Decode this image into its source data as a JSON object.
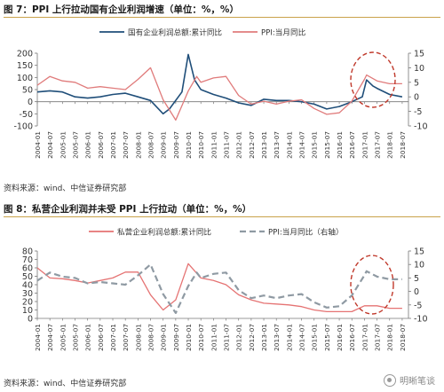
{
  "figures": [
    {
      "title": "图 7：PPI 上行拉动国有企业利润增速（单位：%，%）",
      "source": "资料来源：wind、中信证券研究部"
    },
    {
      "title": "图 8：私营企业利润并未受 PPI 上行拉动（单位：%，%）",
      "source": "资料来源：wind、中信证券研究部"
    }
  ],
  "watermark": {
    "text": "明晰笔谈",
    "icon": "wechat-logo-icon"
  },
  "colors": {
    "primary": "#1f4e79",
    "ppi": "#e07b7b",
    "private": "#e57373",
    "ppi_dashed": "#8f9aa3",
    "circle": "#c0392b",
    "axis": "#555555"
  },
  "chart_data": [
    {
      "type": "line",
      "x_ticks": [
        "2004-01",
        "2004-07",
        "2005-01",
        "2005-07",
        "2006-01",
        "2006-07",
        "2007-01",
        "2007-07",
        "2008-01",
        "2008-07",
        "2009-01",
        "2009-07",
        "2010-01",
        "2010-07",
        "2011-01",
        "2011-07",
        "2012-01",
        "2012-07",
        "2013-01",
        "2013-07",
        "2014-01",
        "2014-07",
        "2015-01",
        "2015-07",
        "2016-01",
        "2016-07",
        "2017-01",
        "2017-07",
        "2018-01",
        "2018-07"
      ],
      "ylim": [
        -100,
        200
      ],
      "y_ticks": [
        -100,
        -50,
        0,
        50,
        100,
        150,
        200
      ],
      "y2lim": [
        -10,
        15
      ],
      "y2_ticks": [
        -10,
        -5,
        0,
        5,
        10,
        15
      ],
      "legend_position": "top",
      "annotation": "dashed circle 2016-07 to 2017-07",
      "series": [
        {
          "name": "国有企业利润总额:累计同比",
          "axis": "left",
          "style": "solid",
          "color": "#1f4e79",
          "x": [
            "2004-01",
            "2004-07",
            "2005-01",
            "2005-07",
            "2006-01",
            "2006-07",
            "2007-01",
            "2007-07",
            "2008-01",
            "2008-07",
            "2009-01",
            "2009-04",
            "2009-10",
            "2010-01",
            "2010-04",
            "2010-07",
            "2011-01",
            "2011-07",
            "2012-01",
            "2012-07",
            "2013-01",
            "2013-07",
            "2014-01",
            "2014-07",
            "2015-01",
            "2015-07",
            "2016-01",
            "2016-07",
            "2016-12",
            "2017-02",
            "2017-05",
            "2017-07",
            "2018-01",
            "2018-07"
          ],
          "values": [
            40,
            45,
            40,
            20,
            15,
            20,
            30,
            35,
            20,
            5,
            -50,
            -30,
            40,
            195,
            90,
            50,
            30,
            15,
            -5,
            -15,
            10,
            5,
            5,
            0,
            -10,
            -30,
            -20,
            0,
            20,
            90,
            65,
            55,
            30,
            20
          ]
        },
        {
          "name": "PPI:当月同比",
          "axis": "right",
          "style": "solid",
          "color": "#e07b7b",
          "x": [
            "2004-01",
            "2004-07",
            "2005-01",
            "2005-07",
            "2006-01",
            "2006-07",
            "2007-01",
            "2007-07",
            "2008-01",
            "2008-07",
            "2009-01",
            "2009-07",
            "2010-01",
            "2010-05",
            "2010-07",
            "2011-01",
            "2011-07",
            "2012-01",
            "2012-07",
            "2013-01",
            "2013-07",
            "2014-01",
            "2014-07",
            "2015-01",
            "2015-07",
            "2016-01",
            "2016-07",
            "2017-01",
            "2017-02",
            "2017-07",
            "2018-01",
            "2018-07"
          ],
          "values": [
            4,
            7,
            5.5,
            5,
            3,
            3.5,
            3,
            2.5,
            6,
            10,
            -1,
            -8,
            2,
            7,
            5,
            6.5,
            7,
            0.5,
            -2.5,
            -1.5,
            -2.5,
            -1.5,
            -1,
            -4,
            -6,
            -5.5,
            -1.5,
            6,
            7.5,
            5.5,
            4.5,
            4.5
          ]
        }
      ]
    },
    {
      "type": "line",
      "x_ticks": [
        "2004-01",
        "2004-07",
        "2005-01",
        "2005-07",
        "2006-01",
        "2006-07",
        "2007-01",
        "2007-07",
        "2008-01",
        "2008-07",
        "2009-01",
        "2009-07",
        "2010-01",
        "2010-07",
        "2011-01",
        "2011-07",
        "2012-01",
        "2012-07",
        "2013-01",
        "2013-07",
        "2014-01",
        "2014-07",
        "2015-01",
        "2015-07",
        "2016-01",
        "2016-07",
        "2017-01",
        "2017-07",
        "2018-01",
        "2018-07"
      ],
      "ylim": [
        0,
        80
      ],
      "y_ticks": [
        0,
        10,
        20,
        30,
        40,
        50,
        60,
        70,
        80
      ],
      "y2lim": [
        -10,
        15
      ],
      "y2_ticks": [
        -10,
        -5,
        0,
        5,
        10,
        15
      ],
      "legend_position": "top",
      "annotation": "dashed circle 2016-07 to 2017-07",
      "series": [
        {
          "name": "私营企业利润总额:累计同比",
          "axis": "left",
          "style": "solid",
          "color": "#e57373",
          "x": [
            "2004-01",
            "2004-07",
            "2005-01",
            "2005-07",
            "2006-01",
            "2006-07",
            "2007-01",
            "2007-07",
            "2008-01",
            "2008-07",
            "2009-01",
            "2009-07",
            "2010-01",
            "2010-07",
            "2011-01",
            "2011-07",
            "2012-01",
            "2012-07",
            "2013-01",
            "2013-07",
            "2014-01",
            "2014-07",
            "2015-01",
            "2015-07",
            "2016-01",
            "2016-07",
            "2017-01",
            "2017-07",
            "2018-01",
            "2018-07"
          ],
          "values": [
            60,
            48,
            47,
            45,
            42,
            45,
            48,
            55,
            55,
            28,
            10,
            22,
            65,
            48,
            45,
            40,
            28,
            22,
            18,
            17,
            16,
            14,
            10,
            8,
            8,
            8,
            15,
            15,
            12,
            12
          ]
        },
        {
          "name": "PPI:当月同比（右轴）",
          "axis": "right",
          "style": "dashed",
          "color": "#8f9aa3",
          "x": [
            "2004-01",
            "2004-07",
            "2005-01",
            "2005-07",
            "2006-01",
            "2006-07",
            "2007-01",
            "2007-07",
            "2008-01",
            "2008-07",
            "2009-01",
            "2009-07",
            "2010-01",
            "2010-05",
            "2010-07",
            "2011-01",
            "2011-07",
            "2012-01",
            "2012-07",
            "2013-01",
            "2013-07",
            "2014-01",
            "2014-07",
            "2015-01",
            "2015-07",
            "2016-01",
            "2016-07",
            "2017-01",
            "2017-02",
            "2017-07",
            "2018-01",
            "2018-07"
          ],
          "values": [
            4,
            7,
            5.5,
            5,
            3,
            3.5,
            3,
            2.5,
            6,
            10,
            -1,
            -8,
            2,
            7,
            5,
            6.5,
            7,
            0.5,
            -2.5,
            -1.5,
            -2.5,
            -1.5,
            -1,
            -4,
            -6,
            -5.5,
            -1.5,
            6,
            7.5,
            5.5,
            4.5,
            4.5
          ]
        }
      ]
    }
  ]
}
